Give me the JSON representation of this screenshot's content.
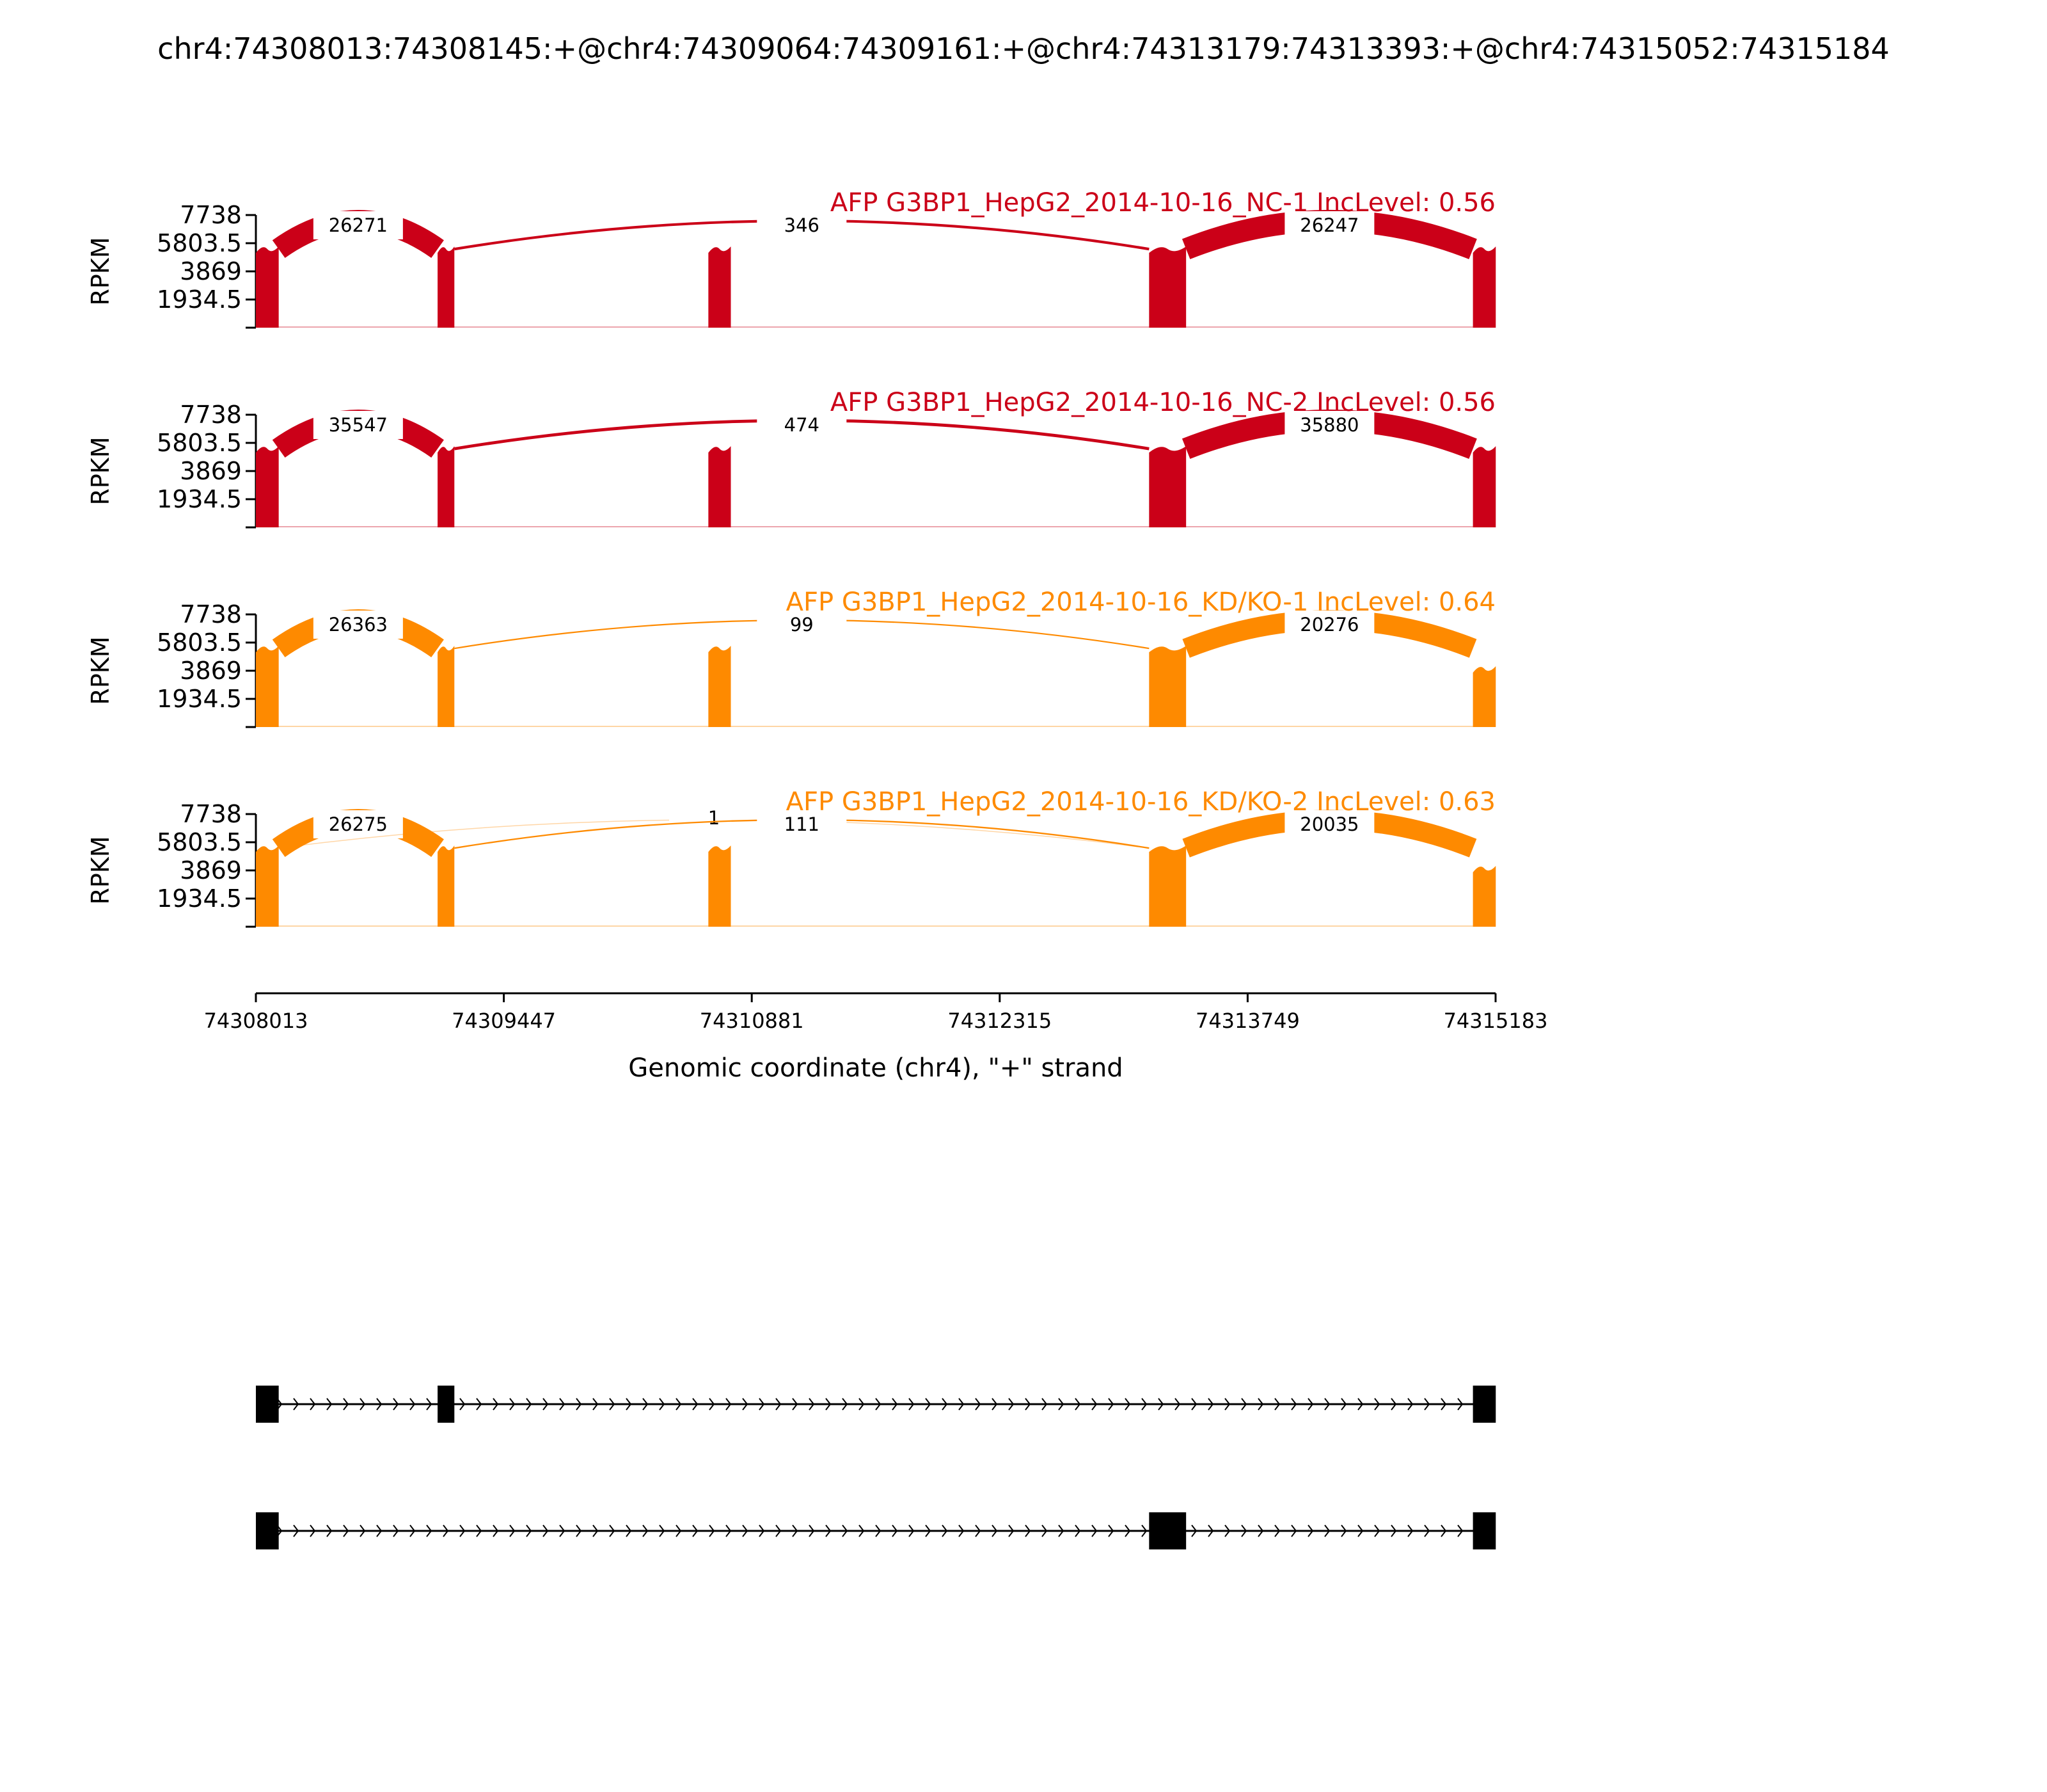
{
  "chart_data": {
    "type": "area",
    "title": "chr4:74308013:74308145:+@chr4:74309064:74309161:+@chr4:74313179:74313393:+@chr4:74315052:74315184",
    "xlabel": "Genomic coordinate (chr4), \"+\" strand",
    "ylabel": "RPKM",
    "xlim": [
      74308013,
      74315183
    ],
    "ylim": [
      0,
      7738
    ],
    "x_ticks": [
      "74308013",
      "74309447",
      "74310881",
      "74312315",
      "74313749",
      "74315183"
    ],
    "y_ticks": [
      "1934.5",
      "3869",
      "5803.5",
      "7738"
    ],
    "exons": [
      [
        74308013,
        74308145
      ],
      [
        74309064,
        74309161
      ],
      [
        74310630,
        74310760
      ],
      [
        74313179,
        74313393
      ],
      [
        74315052,
        74315184
      ]
    ],
    "colors": {
      "NC": "#cb0018",
      "KD": "#fe8a00"
    },
    "panels": [
      {
        "name": "AFP G3BP1_HepG2_2014-10-16_NC-1 IncLevel: 0.56",
        "group": "NC",
        "exon_heights": [
          5400,
          5400,
          5400,
          5400,
          5400
        ],
        "junctions": [
          {
            "from": 74308145,
            "to": 74309064,
            "count": "26271"
          },
          {
            "from": 74309161,
            "to": 74313179,
            "count": "346"
          },
          {
            "from": 74313393,
            "to": 74315052,
            "count": "26247"
          }
        ]
      },
      {
        "name": "AFP G3BP1_HepG2_2014-10-16_NC-2 IncLevel: 0.56",
        "group": "NC",
        "exon_heights": [
          5400,
          5400,
          5400,
          5400,
          5400
        ],
        "junctions": [
          {
            "from": 74308145,
            "to": 74309064,
            "count": "35547"
          },
          {
            "from": 74309161,
            "to": 74313179,
            "count": "474"
          },
          {
            "from": 74313393,
            "to": 74315052,
            "count": "35880"
          }
        ]
      },
      {
        "name": "AFP G3BP1_HepG2_2014-10-16_KD/KO-1 IncLevel: 0.64",
        "group": "KD",
        "exon_heights": [
          5400,
          5400,
          5400,
          5400,
          4000
        ],
        "junctions": [
          {
            "from": 74308145,
            "to": 74309064,
            "count": "26363"
          },
          {
            "from": 74309161,
            "to": 74313179,
            "count": "99"
          },
          {
            "from": 74313393,
            "to": 74315052,
            "count": "20276"
          }
        ]
      },
      {
        "name": "AFP G3BP1_HepG2_2014-10-16_KD/KO-2 IncLevel: 0.63",
        "group": "KD",
        "exon_heights": [
          5400,
          5400,
          5400,
          5400,
          4000
        ],
        "junctions": [
          {
            "from": 74308145,
            "to": 74309064,
            "count": "26275"
          },
          {
            "from": 74308145,
            "to": 74313179,
            "count": "1"
          },
          {
            "from": 74309161,
            "to": 74313179,
            "count": "111"
          },
          {
            "from": 74313393,
            "to": 74315052,
            "count": "20035"
          }
        ]
      }
    ],
    "isoforms": [
      {
        "exons": [
          [
            74308013,
            74308145
          ],
          [
            74309064,
            74309161
          ],
          [
            74315052,
            74315184
          ]
        ]
      },
      {
        "exons": [
          [
            74308013,
            74308145
          ],
          [
            74313179,
            74313393
          ],
          [
            74315052,
            74315184
          ]
        ]
      }
    ]
  }
}
